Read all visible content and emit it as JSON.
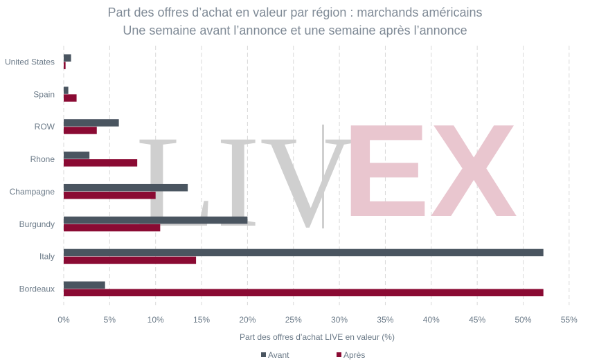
{
  "title_line1": "Part des offres d’achat en valeur par région : marchands américains",
  "title_line2": "Une semaine avant l’annonce et une semaine après l’annonce",
  "watermark": {
    "left": "LIV",
    "right": "EX"
  },
  "colors": {
    "avant": "#4a5560",
    "apres": "#8a0a33",
    "grid": "#d9d9d9",
    "wm_left": "#cfcfcf",
    "wm_right": "#e9c6cf"
  },
  "chart_data": {
    "type": "bar",
    "orientation": "horizontal",
    "xlabel": "Part des offres d’achat LIVE en valeur (%)",
    "ylabel": "",
    "xlim": [
      0,
      55
    ],
    "x_ticks": [
      "0%",
      "5%",
      "10%",
      "15%",
      "20%",
      "25%",
      "30%",
      "35%",
      "40%",
      "45%",
      "50%",
      "55%"
    ],
    "grid": true,
    "legend_position": "bottom",
    "categories": [
      "United States",
      "Spain",
      "ROW",
      "Rhone",
      "Champagne",
      "Burgundy",
      "Italy",
      "Bordeaux"
    ],
    "series": [
      {
        "name": "Avant",
        "values": [
          0.8,
          0.5,
          6.0,
          2.8,
          13.5,
          20.0,
          52.2,
          4.5
        ]
      },
      {
        "name": "Après",
        "values": [
          0.2,
          1.4,
          3.6,
          8.0,
          10.0,
          10.5,
          14.4,
          52.2
        ]
      }
    ]
  }
}
